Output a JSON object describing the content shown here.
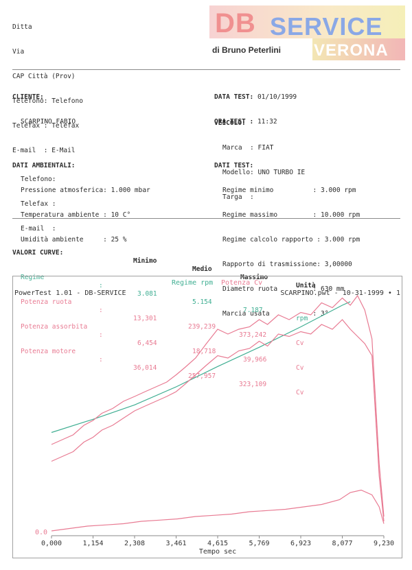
{
  "company": {
    "lines": [
      "Ditta",
      "Via",
      "CAP Città (Prov)",
      "Telefono: Telefono",
      "Telefax : Telefax",
      "E-mail  : E-Mail"
    ]
  },
  "logo": {
    "db": "DB",
    "service": "SERVICE",
    "by": "di Bruno Peterlini",
    "city": "VERONA",
    "colors": {
      "db": "#f09090",
      "service": "#8aa8e6"
    }
  },
  "client": {
    "heading": "CLIENTE:",
    "name": "SCARPINO FABIO",
    "telefono_label": "Telefono:",
    "telefax_label": "Telefax :",
    "email_label": "E-mail  :"
  },
  "test_date": {
    "date_label": "DATA TEST:",
    "date_value": "01/10/1999",
    "time_label": "ORA TEST :",
    "time_value": "11:32"
  },
  "vehicle": {
    "heading": "VEICOLO:",
    "marca_label": "Marca  :",
    "marca_value": "FIAT",
    "modello_label": "Modello:",
    "modello_value": "UNO TURBO IE",
    "targa_label": "Targa  :"
  },
  "ambient": {
    "heading": "DATI AMBIENTALI:",
    "rows": [
      {
        "label": "Pressione atmosferica:",
        "value": "1.000 mbar"
      },
      {
        "label": "Temperatura ambiente :",
        "value": "10 C°"
      },
      {
        "label": "Umidità ambiente     :",
        "value": "25 %"
      }
    ]
  },
  "test_data": {
    "heading": "DATI TEST:",
    "rows": [
      {
        "label": "Regime minimo          :",
        "value": "3.000 rpm"
      },
      {
        "label": "Regime massimo         :",
        "value": "10.000 rpm"
      },
      {
        "label": "Regime calcolo rapporto :",
        "value": "3.000 rpm"
      },
      {
        "label": "Rapporto di trasmissione:",
        "value": "3,00000"
      },
      {
        "label": "Diametro ruota         :",
        "value": "630 mm"
      },
      {
        "label": "Marcia usata           :",
        "value": "3°"
      }
    ]
  },
  "curves": {
    "heading": "VALORI CURVE:",
    "col_min": "Minimo",
    "col_med": "Medio",
    "col_max": "Massimo",
    "col_unit": "Unità",
    "rows": [
      {
        "name": "Regime",
        "min": "3.081",
        "med": "5.154",
        "max": "7.187",
        "unit": "rpm",
        "color": "#3fae92"
      },
      {
        "name": "Potenza ruota",
        "min": "13,301",
        "med": "239,239",
        "max": "373,242",
        "unit": "Cv",
        "color": "#e87a92"
      },
      {
        "name": "Potenza assorbita",
        "min": "6,454",
        "med": "18,718",
        "max": "39,966",
        "unit": "Cv",
        "color": "#e87a92"
      },
      {
        "name": "Potenza motore",
        "min": "36,014",
        "med": "257,957",
        "max": "323,109",
        "unit": "Cv",
        "color": "#e87a92"
      }
    ]
  },
  "chart_data": {
    "type": "line",
    "legend": [
      "Regime rpm",
      "Potenza Cv"
    ],
    "header_left": "PowerTest 1.01 - DB-SERVICE",
    "header_right": "SCARPINO.pwt - 10-31-1999 • 1",
    "xlabel": "Tempo sec",
    "y_axis_label": "0.0",
    "xlim": [
      0,
      9.23
    ],
    "x_ticks": [
      "0,000",
      "1,154",
      "2,308",
      "3,461",
      "4,615",
      "5,769",
      "6,923",
      "8,077",
      "9,230"
    ],
    "ylim": [
      0,
      100
    ],
    "series": [
      {
        "name": "Regime rpm",
        "color": "#3fae92",
        "x": [
          0,
          1.154,
          2.308,
          3.461,
          4.615,
          5.769,
          6.923,
          8.077,
          8.3
        ],
        "y": [
          43,
          48.5,
          54.5,
          62,
          70.5,
          78.5,
          87,
          96,
          97.5
        ]
      },
      {
        "name": "Potenza Cv",
        "color": "#e87a92",
        "x": [
          0,
          0.3,
          0.6,
          0.9,
          1.154,
          1.4,
          1.7,
          2.0,
          2.308,
          2.6,
          2.9,
          3.2,
          3.461,
          3.7,
          4.0,
          4.3,
          4.615,
          4.9,
          5.2,
          5.5,
          5.769,
          6.0,
          6.3,
          6.6,
          6.923,
          7.2,
          7.5,
          7.8,
          8.077,
          8.3,
          8.5,
          8.7,
          8.9,
          9.1,
          9.23
        ],
        "y": [
          38,
          40,
          42,
          46,
          48,
          51,
          53,
          56,
          58,
          60,
          62,
          64,
          67,
          70,
          74,
          80,
          86,
          84,
          86,
          87,
          90,
          88,
          92,
          90,
          93,
          92,
          97,
          95,
          99,
          96,
          100,
          94,
          82,
          30,
          8
        ]
      },
      {
        "name": "Potenza Cv",
        "color": "#e87a92",
        "x": [
          0,
          0.3,
          0.6,
          0.9,
          1.154,
          1.4,
          1.7,
          2.0,
          2.308,
          2.6,
          2.9,
          3.2,
          3.461,
          3.7,
          4.0,
          4.3,
          4.615,
          4.9,
          5.2,
          5.5,
          5.769,
          6.0,
          6.3,
          6.6,
          6.923,
          7.2,
          7.5,
          7.8,
          8.077,
          8.3,
          8.5,
          8.7,
          8.9,
          9.1,
          9.23
        ],
        "y": [
          31,
          33,
          35,
          39,
          41,
          44,
          46,
          49,
          52,
          54,
          56,
          58,
          60,
          63,
          67,
          71,
          75,
          74,
          77,
          78,
          81,
          79,
          84,
          83,
          85,
          84,
          88,
          86,
          90,
          86,
          83,
          80,
          75,
          25,
          6
        ]
      },
      {
        "name": "Potenza Cv",
        "color": "#e87a92",
        "x": [
          0,
          0.5,
          1.0,
          1.5,
          2.0,
          2.5,
          3.0,
          3.5,
          4.0,
          4.5,
          5.0,
          5.5,
          6.0,
          6.5,
          7.0,
          7.5,
          8.0,
          8.3,
          8.6,
          8.9,
          9.1,
          9.23
        ],
        "y": [
          2,
          3,
          4,
          4.5,
          5,
          6,
          6.5,
          7,
          8,
          8.5,
          9,
          10,
          10.5,
          11,
          12,
          13,
          15,
          18,
          19,
          17,
          12,
          5
        ]
      }
    ],
    "grid": false
  }
}
